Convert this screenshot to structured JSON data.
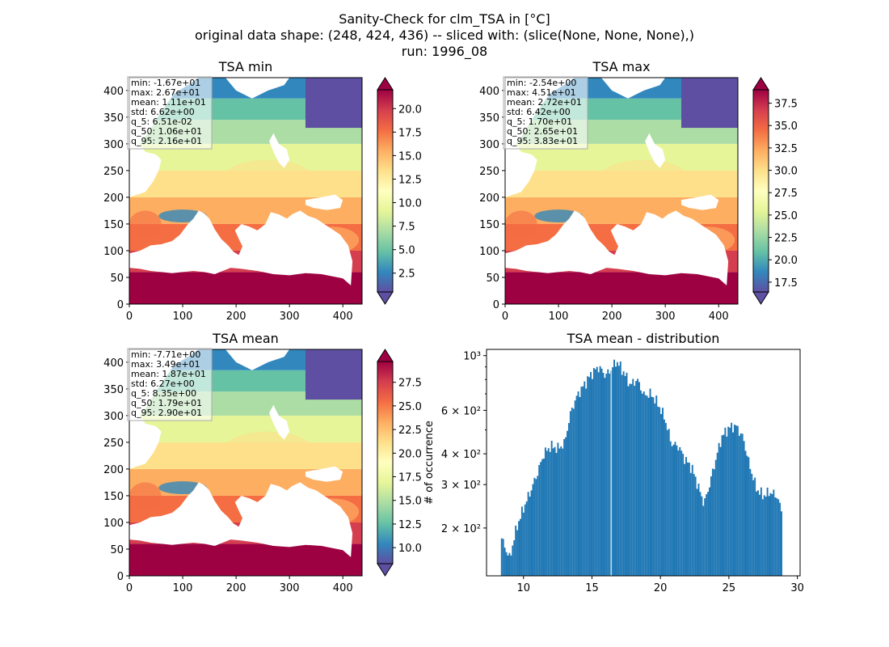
{
  "figure": {
    "title_lines": [
      "Sanity-Check for clm_TSA in [°C]",
      "original data shape: (248, 424, 436) -- sliced with: (slice(None, None, None),)",
      "run: 1996_08"
    ]
  },
  "chart_data": [
    {
      "type": "heatmap",
      "title": "TSA min",
      "xlim": [
        0,
        436
      ],
      "ylim": [
        0,
        424
      ],
      "xticks": [
        0,
        100,
        200,
        300,
        400
      ],
      "yticks": [
        0,
        50,
        100,
        150,
        200,
        250,
        300,
        350,
        400
      ],
      "colormap": "Spectral_r",
      "colorbar": {
        "range": [
          0.5,
          22
        ],
        "ticks": [
          "2.5",
          "5.0",
          "7.5",
          "10.0",
          "12.5",
          "15.0",
          "17.5",
          "20.0"
        ],
        "extend": "both"
      },
      "stats": [
        "min: -1.67e+01",
        "max: 2.67e+01",
        "mean: 1.11e+01",
        "std: 6.62e+00",
        "q_5: 6.51e-02",
        "q_50: 1.06e+01",
        "q_95: 2.16e+01"
      ]
    },
    {
      "type": "heatmap",
      "title": "TSA max",
      "xlim": [
        0,
        436
      ],
      "ylim": [
        0,
        424
      ],
      "xticks": [
        0,
        100,
        200,
        300,
        400
      ],
      "yticks": [
        0,
        50,
        100,
        150,
        200,
        250,
        300,
        350,
        400
      ],
      "colormap": "Spectral_r",
      "colorbar": {
        "range": [
          16.4,
          39.0
        ],
        "ticks": [
          "17.5",
          "20.0",
          "22.5",
          "25.0",
          "27.5",
          "30.0",
          "32.5",
          "35.0",
          "37.5"
        ],
        "extend": "both"
      },
      "stats": [
        "min: -2.54e+00",
        "max: 4.51e+01",
        "mean: 2.72e+01",
        "std: 6.42e+00",
        "q_5: 1.70e+01",
        "q_50: 2.65e+01",
        "q_95: 3.83e+01"
      ]
    },
    {
      "type": "heatmap",
      "title": "TSA mean",
      "xlim": [
        0,
        436
      ],
      "ylim": [
        0,
        424
      ],
      "xticks": [
        0,
        100,
        200,
        300,
        400
      ],
      "yticks": [
        0,
        50,
        100,
        150,
        200,
        250,
        300,
        350,
        400
      ],
      "colormap": "Spectral_r",
      "colorbar": {
        "range": [
          8.3,
          29.7
        ],
        "ticks": [
          "10.0",
          "12.5",
          "15.0",
          "17.5",
          "20.0",
          "22.5",
          "25.0",
          "27.5"
        ],
        "extend": "both"
      },
      "stats": [
        "min: -7.71e+00",
        "max: 3.49e+01",
        "mean: 1.87e+01",
        "std: 6.27e+00",
        "q_5: 8.35e+00",
        "q_50: 1.79e+01",
        "q_95: 2.90e+01"
      ]
    },
    {
      "type": "bar",
      "title": "TSA mean - distribution",
      "ylabel": "# of occurrence",
      "xlim": [
        7.3,
        30.2
      ],
      "ylim_log": [
        128,
        1060
      ],
      "yscale": "log",
      "xticks": [
        10,
        15,
        20,
        25,
        30
      ],
      "yticks": [
        {
          "value": 200,
          "label": "2 × 10²"
        },
        {
          "value": 300,
          "label": "3 × 10²"
        },
        {
          "value": 400,
          "label": "4 × 10²"
        },
        {
          "value": 600,
          "label": "6 × 10²"
        },
        {
          "value": 1000,
          "label": "10³"
        }
      ],
      "bar_color": "#1f77b4",
      "x_knots": [
        8.35,
        8.6,
        9.0,
        9.5,
        10.0,
        10.5,
        11.0,
        11.5,
        12.0,
        12.5,
        13.0,
        13.5,
        14.0,
        14.5,
        15.0,
        15.5,
        16.0,
        16.4,
        16.8,
        17.3,
        17.8,
        18.3,
        18.8,
        19.3,
        19.8,
        20.3,
        20.8,
        21.3,
        21.8,
        22.3,
        22.8,
        23.2,
        23.6,
        24.0,
        24.5,
        25.0,
        25.5,
        26.0,
        26.5,
        27.0,
        27.5,
        28.0,
        28.5,
        28.9
      ],
      "y_knots": [
        185,
        170,
        150,
        200,
        240,
        280,
        330,
        400,
        430,
        420,
        440,
        600,
        700,
        770,
        850,
        900,
        830,
        880,
        950,
        860,
        760,
        800,
        690,
        700,
        640,
        560,
        440,
        430,
        380,
        350,
        290,
        250,
        300,
        370,
        470,
        510,
        520,
        470,
        360,
        290,
        270,
        280,
        270,
        230
      ]
    }
  ]
}
